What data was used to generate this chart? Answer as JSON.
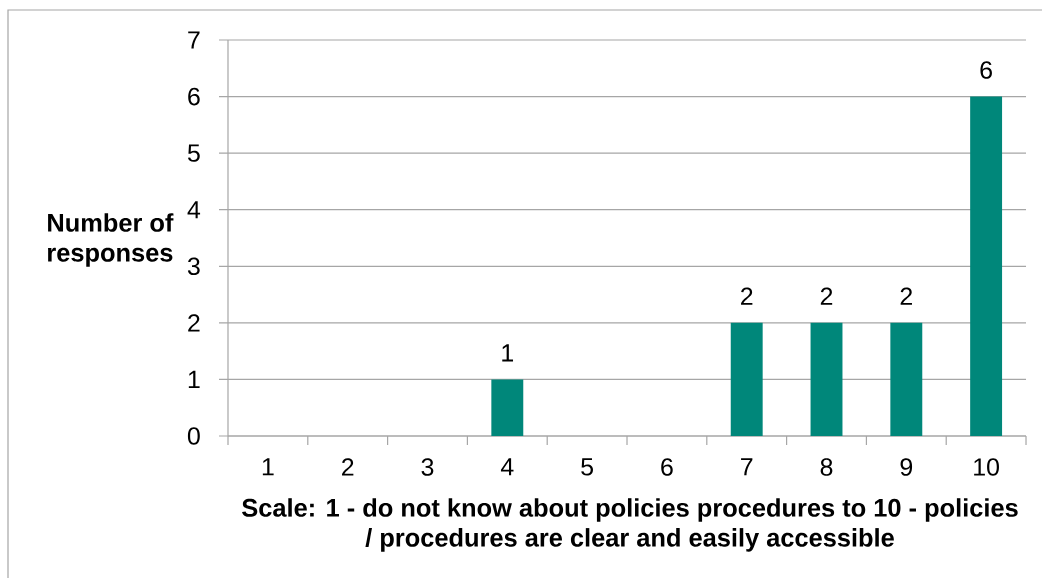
{
  "chart_data": {
    "type": "bar",
    "categories": [
      "1",
      "2",
      "3",
      "4",
      "5",
      "6",
      "7",
      "8",
      "9",
      "10"
    ],
    "values": [
      0,
      0,
      0,
      1,
      0,
      0,
      2,
      2,
      2,
      6
    ],
    "value_labels": [
      null,
      null,
      null,
      "1",
      null,
      null,
      "2",
      "2",
      "2",
      "6"
    ],
    "color": "#00877a",
    "xlabel": "Scale: 1 - do not know about policies procedures to 10 - policies / procedures are clear and easily accessible",
    "ylabel": "Number of responses",
    "ylim": [
      0,
      7
    ],
    "yticks": [
      0,
      1,
      2,
      3,
      4,
      5,
      6,
      7
    ],
    "grid": "y"
  }
}
